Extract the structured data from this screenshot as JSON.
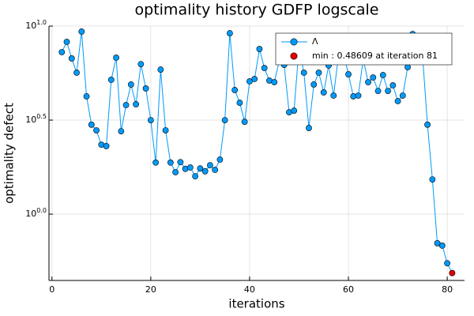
{
  "chart_data": {
    "type": "line",
    "title": "optimality history GDFP logscale",
    "x_label": "iterations",
    "y_label": "optimality defect",
    "xlim": [
      -0.6,
      83.5
    ],
    "xticks": [
      0,
      20,
      40,
      60,
      80
    ],
    "ylim": [
      0.444,
      10
    ],
    "log_y": true,
    "yticks": [
      {
        "value": 1,
        "label": "10^0.0"
      },
      {
        "value": 3.1623,
        "label": "10^0.5"
      },
      {
        "value": 10,
        "label": "10^1.0"
      }
    ],
    "grid": true,
    "legend": "top-right",
    "series": [
      {
        "name": "Λ",
        "color": "#009af9",
        "x": [
          2,
          3,
          4,
          5,
          6,
          7,
          8,
          9,
          10,
          11,
          12,
          13,
          14,
          15,
          16,
          17,
          18,
          19,
          20,
          21,
          22,
          23,
          24,
          25,
          26,
          27,
          28,
          29,
          30,
          31,
          32,
          33,
          34,
          35,
          36,
          37,
          38,
          39,
          40,
          41,
          42,
          43,
          44,
          45,
          46,
          47,
          48,
          49,
          50,
          51,
          52,
          53,
          54,
          55,
          56,
          57,
          58,
          59,
          60,
          61,
          62,
          63,
          64,
          65,
          66,
          67,
          68,
          69,
          70,
          71,
          72,
          73,
          74,
          75,
          76,
          77,
          78,
          79,
          80,
          81
        ],
        "values": [
          7.27,
          8.24,
          6.73,
          5.65,
          9.35,
          4.23,
          2.99,
          2.79,
          2.34,
          2.3,
          5.18,
          6.79,
          2.76,
          3.8,
          4.89,
          3.84,
          6.28,
          4.66,
          3.16,
          1.88,
          5.87,
          2.79,
          1.88,
          1.67,
          1.89,
          1.74,
          1.77,
          1.59,
          1.75,
          1.69,
          1.82,
          1.72,
          1.95,
          3.16,
          9.16,
          4.57,
          3.91,
          3.1,
          5.08,
          5.23,
          7.55,
          5.98,
          5.13,
          5.03,
          6.5,
          6.22,
          3.48,
          3.55,
          7.7,
          5.65,
          2.87,
          4.89,
          5.65,
          4.44,
          6.17,
          4.27,
          7.0,
          7.19,
          5.54,
          4.23,
          4.27,
          6.66,
          5.03,
          5.33,
          4.52,
          5.49,
          4.52,
          4.84,
          3.99,
          4.27,
          6.05,
          9.08,
          7.5,
          7.0,
          2.99,
          1.53,
          0.7,
          0.68,
          0.548,
          0.48609
        ]
      },
      {
        "name": "min : 0.48609 at iteration 81",
        "color": "#e20000",
        "marker_only": true,
        "x": [
          81
        ],
        "values": [
          0.48609
        ]
      }
    ]
  }
}
